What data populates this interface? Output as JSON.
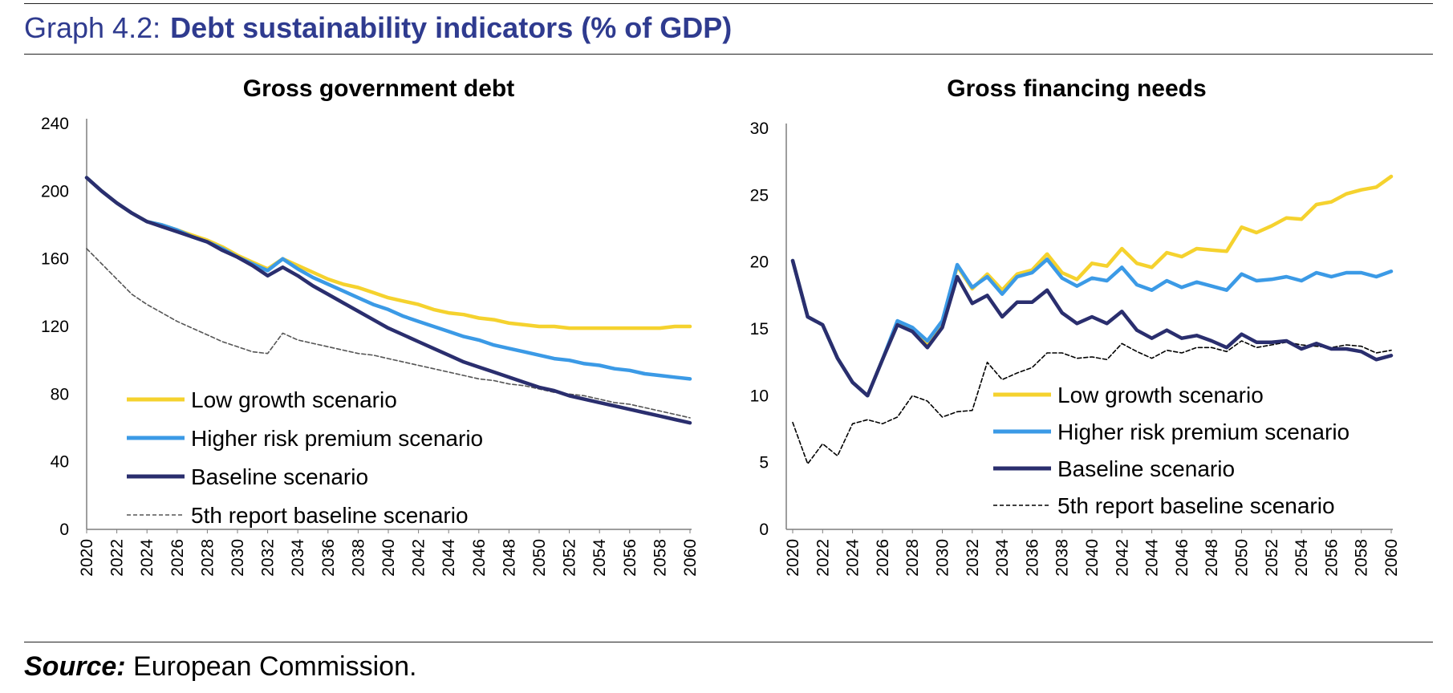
{
  "header": {
    "graph_number": "Graph 4.2:",
    "graph_title": "Debt sustainability indicators (% of GDP)"
  },
  "footer": {
    "source_label": "Source:",
    "source_text": "European Commission."
  },
  "chart_data": [
    {
      "type": "line",
      "title": "Gross government debt",
      "xlabel": "",
      "ylabel": "",
      "ylim": [
        0,
        240
      ],
      "yticks": [
        0,
        40,
        80,
        120,
        160,
        200,
        240
      ],
      "x": [
        2020,
        2021,
        2022,
        2023,
        2024,
        2025,
        2026,
        2027,
        2028,
        2029,
        2030,
        2031,
        2032,
        2033,
        2034,
        2035,
        2036,
        2037,
        2038,
        2039,
        2040,
        2041,
        2042,
        2043,
        2044,
        2045,
        2046,
        2047,
        2048,
        2049,
        2050,
        2051,
        2052,
        2053,
        2054,
        2055,
        2056,
        2057,
        2058,
        2059,
        2060
      ],
      "xtick_labels": [
        "2020",
        "2022",
        "2024",
        "2026",
        "2028",
        "2030",
        "2032",
        "2034",
        "2036",
        "2038",
        "2040",
        "2042",
        "2044",
        "2046",
        "2048",
        "2050",
        "2052",
        "2054",
        "2056",
        "2058",
        "2060"
      ],
      "legend_position": "bottom-left",
      "series": [
        {
          "name": "Low growth scenario",
          "color": "#f5d22e",
          "style": "solid",
          "values": [
            208,
            200,
            193,
            187,
            182,
            180,
            177,
            174,
            171,
            167,
            162,
            158,
            154,
            160,
            156,
            152,
            148,
            145,
            143,
            140,
            137,
            135,
            133,
            130,
            128,
            127,
            125,
            124,
            122,
            121,
            120,
            120,
            119,
            119,
            119,
            119,
            119,
            119,
            119,
            120,
            120
          ]
        },
        {
          "name": "Higher risk premium scenario",
          "color": "#3b9ae6",
          "style": "solid",
          "values": [
            208,
            200,
            193,
            187,
            182,
            180,
            177,
            173,
            170,
            166,
            161,
            157,
            153,
            160,
            154,
            149,
            145,
            141,
            137,
            133,
            130,
            126,
            123,
            120,
            117,
            114,
            112,
            109,
            107,
            105,
            103,
            101,
            100,
            98,
            97,
            95,
            94,
            92,
            91,
            90,
            89
          ]
        },
        {
          "name": "Baseline scenario",
          "color": "#2a2e6e",
          "style": "solid",
          "values": [
            208,
            200,
            193,
            187,
            182,
            179,
            176,
            173,
            170,
            165,
            161,
            156,
            150,
            155,
            150,
            144,
            139,
            134,
            129,
            124,
            119,
            115,
            111,
            107,
            103,
            99,
            96,
            93,
            90,
            87,
            84,
            82,
            79,
            77,
            75,
            73,
            71,
            69,
            67,
            65,
            63
          ]
        },
        {
          "name": "5th report baseline scenario",
          "color": "#555555",
          "style": "dashed",
          "values": [
            166,
            157,
            148,
            139,
            133,
            128,
            123,
            119,
            115,
            111,
            108,
            105,
            104,
            116,
            112,
            110,
            108,
            106,
            104,
            103,
            101,
            99,
            97,
            95,
            93,
            91,
            89,
            88,
            86,
            85,
            83,
            81,
            80,
            79,
            77,
            75,
            74,
            72,
            70,
            68,
            66
          ]
        }
      ]
    },
    {
      "type": "line",
      "title": "Gross financing needs",
      "xlabel": "",
      "ylabel": "",
      "ylim": [
        0,
        30
      ],
      "yticks": [
        0,
        5,
        10,
        15,
        20,
        25,
        30
      ],
      "x": [
        2020,
        2021,
        2022,
        2023,
        2024,
        2025,
        2026,
        2027,
        2028,
        2029,
        2030,
        2031,
        2032,
        2033,
        2034,
        2035,
        2036,
        2037,
        2038,
        2039,
        2040,
        2041,
        2042,
        2043,
        2044,
        2045,
        2046,
        2047,
        2048,
        2049,
        2050,
        2051,
        2052,
        2053,
        2054,
        2055,
        2056,
        2057,
        2058,
        2059,
        2060
      ],
      "xtick_labels": [
        "2020",
        "2022",
        "2024",
        "2026",
        "2028",
        "2030",
        "2032",
        "2034",
        "2036",
        "2038",
        "2040",
        "2042",
        "2044",
        "2046",
        "2048",
        "2050",
        "2052",
        "2054",
        "2056",
        "2058",
        "2060"
      ],
      "legend_position": "bottom-right",
      "series": [
        {
          "name": "Low growth scenario",
          "color": "#f5d22e",
          "style": "solid",
          "values": [
            20.1,
            15.9,
            15.3,
            12.8,
            11.0,
            10.0,
            12.7,
            15.5,
            15.0,
            13.8,
            15.5,
            19.7,
            18.0,
            19.1,
            17.9,
            19.1,
            19.4,
            20.6,
            19.2,
            18.7,
            19.9,
            19.7,
            21.0,
            19.9,
            19.6,
            20.7,
            20.4,
            21.0,
            20.9,
            20.8,
            22.6,
            22.2,
            22.7,
            23.3,
            23.2,
            24.3,
            24.5,
            25.1,
            25.4,
            25.6,
            26.4
          ]
        },
        {
          "name": "Higher risk premium scenario",
          "color": "#3b9ae6",
          "style": "solid",
          "values": [
            20.1,
            15.9,
            15.3,
            12.8,
            11.0,
            10.0,
            12.7,
            15.6,
            15.1,
            14.1,
            15.6,
            19.8,
            18.1,
            18.9,
            17.6,
            18.9,
            19.2,
            20.2,
            18.8,
            18.2,
            18.8,
            18.6,
            19.6,
            18.3,
            17.9,
            18.6,
            18.1,
            18.5,
            18.2,
            17.9,
            19.1,
            18.6,
            18.7,
            18.9,
            18.6,
            19.2,
            18.9,
            19.2,
            19.2,
            18.9,
            19.3
          ]
        },
        {
          "name": "Baseline scenario",
          "color": "#2a2e6e",
          "style": "solid",
          "values": [
            20.1,
            15.9,
            15.3,
            12.8,
            11.0,
            10.0,
            12.7,
            15.3,
            14.8,
            13.6,
            15.1,
            18.9,
            16.9,
            17.5,
            15.9,
            17.0,
            17.0,
            17.9,
            16.2,
            15.4,
            15.9,
            15.4,
            16.3,
            14.9,
            14.3,
            14.9,
            14.3,
            14.5,
            14.1,
            13.6,
            14.6,
            14.0,
            14.0,
            14.1,
            13.5,
            13.9,
            13.5,
            13.5,
            13.3,
            12.7,
            13.0
          ]
        },
        {
          "name": "5th report baseline scenario",
          "color": "#000000",
          "style": "dashed",
          "values": [
            8.0,
            4.9,
            6.4,
            5.5,
            7.9,
            8.2,
            7.9,
            8.4,
            10.0,
            9.6,
            8.4,
            8.8,
            8.9,
            12.5,
            11.2,
            11.7,
            12.1,
            13.2,
            13.2,
            12.8,
            12.9,
            12.7,
            13.9,
            13.3,
            12.8,
            13.4,
            13.2,
            13.6,
            13.6,
            13.3,
            14.1,
            13.6,
            13.8,
            14.0,
            13.8,
            13.7,
            13.6,
            13.8,
            13.7,
            13.2,
            13.4
          ]
        }
      ]
    }
  ]
}
